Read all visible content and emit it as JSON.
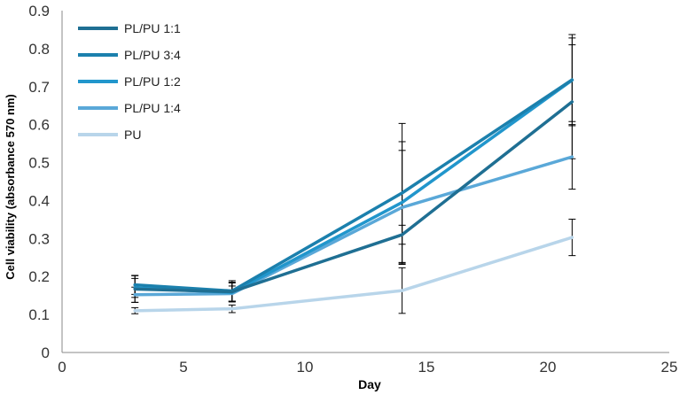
{
  "chart_data": {
    "type": "line",
    "xlabel": "Day",
    "ylabel": "Cell viability (absorbance 570 nm)",
    "xlim": [
      0,
      25
    ],
    "ylim": [
      0,
      0.9
    ],
    "xticks": [
      "0",
      "5",
      "10",
      "15",
      "20",
      "25"
    ],
    "yticks": [
      "0",
      "0.1",
      "0.2",
      "0.3",
      "0.4",
      "0.5",
      "0.6",
      "0.7",
      "0.8",
      "0.9"
    ],
    "grid": false,
    "legend_position": "top-left",
    "x": [
      3,
      7,
      14,
      21
    ],
    "series": [
      {
        "name": "PL/PU 1:1",
        "color": "#1f6f93",
        "values": [
          0.167,
          0.16,
          0.31,
          0.66
        ],
        "error": [
          0.035,
          0.025,
          0.025,
          0.15
        ]
      },
      {
        "name": "PL/PU 3:4",
        "color": "#1b80ad",
        "values": [
          0.178,
          0.162,
          0.42,
          0.718
        ],
        "error": [
          0.025,
          0.027,
          0.183,
          0.11
        ]
      },
      {
        "name": "PL/PU 1:2",
        "color": "#2196cc",
        "values": [
          0.17,
          0.158,
          0.395,
          0.717
        ],
        "error": [
          0.025,
          0.025,
          0.16,
          0.12
        ]
      },
      {
        "name": "PL/PU 1:4",
        "color": "#5aa8d8",
        "values": [
          0.152,
          0.155,
          0.382,
          0.515
        ],
        "error": [
          0.02,
          0.02,
          0.15,
          0.085
        ]
      },
      {
        "name": "PU",
        "color": "#b8d5ea",
        "values": [
          0.11,
          0.115,
          0.163,
          0.303
        ],
        "error": [
          0.008,
          0.01,
          0.06,
          0.048
        ]
      }
    ]
  }
}
